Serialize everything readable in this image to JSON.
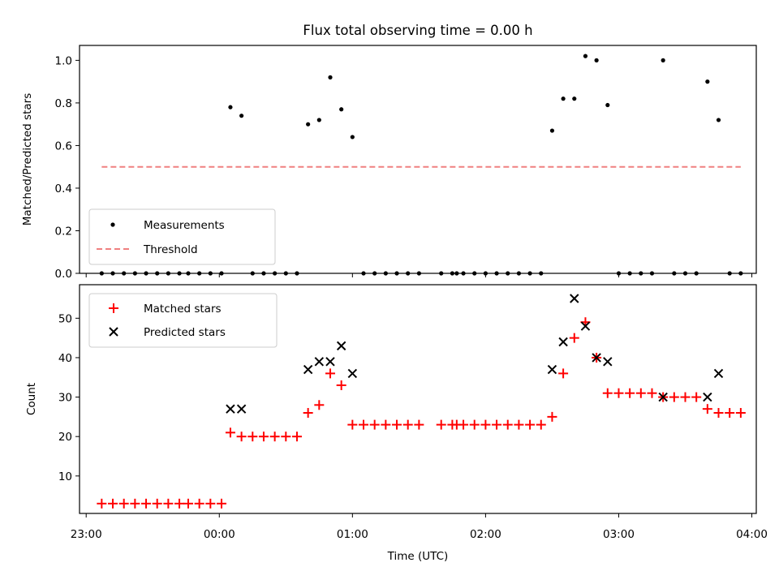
{
  "chart_data": [
    {
      "type": "scatter",
      "title": "Flux total observing time = 0.00 h",
      "xlabel": "",
      "ylabel": "Matched/Predicted stars",
      "ylim": [
        0,
        1.07
      ],
      "yticks": [
        "0.0",
        "0.2",
        "0.4",
        "0.6",
        "0.8",
        "1.0"
      ],
      "legend_position": "lower-left",
      "series": [
        {
          "name": "Measurements",
          "marker": "dot",
          "color": "#000000",
          "points": [
            [
              "23:07",
              0
            ],
            [
              "23:12",
              0
            ],
            [
              "23:17",
              0
            ],
            [
              "23:22",
              0
            ],
            [
              "23:27",
              0
            ],
            [
              "23:32",
              0
            ],
            [
              "23:37",
              0
            ],
            [
              "23:42",
              0
            ],
            [
              "23:46",
              0
            ],
            [
              "23:51",
              0
            ],
            [
              "23:56",
              0
            ],
            [
              "24:01",
              0
            ],
            [
              "24:05",
              0.78
            ],
            [
              "24:10",
              0.74
            ],
            [
              "24:15",
              0
            ],
            [
              "24:20",
              0
            ],
            [
              "24:25",
              0
            ],
            [
              "24:30",
              0
            ],
            [
              "24:35",
              0
            ],
            [
              "24:40",
              0.7
            ],
            [
              "24:45",
              0.72
            ],
            [
              "24:50",
              0.92
            ],
            [
              "24:55",
              0.77
            ],
            [
              "25:00",
              0.64
            ],
            [
              "25:05",
              0
            ],
            [
              "25:10",
              0
            ],
            [
              "25:15",
              0
            ],
            [
              "25:20",
              0
            ],
            [
              "25:25",
              0
            ],
            [
              "25:30",
              0
            ],
            [
              "25:40",
              0
            ],
            [
              "25:45",
              0
            ],
            [
              "25:47",
              0
            ],
            [
              "25:50",
              0
            ],
            [
              "25:55",
              0
            ],
            [
              "26:00",
              0
            ],
            [
              "26:05",
              0
            ],
            [
              "26:10",
              0
            ],
            [
              "26:15",
              0
            ],
            [
              "26:20",
              0
            ],
            [
              "26:25",
              0
            ],
            [
              "26:30",
              0.67
            ],
            [
              "26:35",
              0.82
            ],
            [
              "26:40",
              0.82
            ],
            [
              "26:45",
              1.02
            ],
            [
              "26:50",
              1.0
            ],
            [
              "26:55",
              0.79
            ],
            [
              "27:00",
              0
            ],
            [
              "27:05",
              0
            ],
            [
              "27:10",
              0
            ],
            [
              "27:15",
              0
            ],
            [
              "27:20",
              1.0
            ],
            [
              "27:25",
              0
            ],
            [
              "27:30",
              0
            ],
            [
              "27:35",
              0
            ],
            [
              "27:40",
              0.9
            ],
            [
              "27:45",
              0.72
            ],
            [
              "27:50",
              0
            ],
            [
              "27:55",
              0
            ]
          ]
        },
        {
          "name": "Threshold",
          "marker": "dashed-line",
          "color": "#f08080",
          "x": [
            "23:07",
            "27:55"
          ],
          "value": 0.5
        }
      ]
    },
    {
      "type": "scatter",
      "title": "",
      "xlabel": "Time (UTC)",
      "ylabel": "Count",
      "ylim": [
        0.5,
        58.5
      ],
      "yticks": [
        "10",
        "20",
        "30",
        "40",
        "50"
      ],
      "xlim": [
        "22:57",
        "28:02"
      ],
      "xticks": [
        "23:00",
        "00:00",
        "01:00",
        "02:00",
        "03:00",
        "04:00"
      ],
      "legend_position": "upper-left",
      "series": [
        {
          "name": "Matched stars",
          "marker": "plus",
          "color": "#ff0000",
          "points": [
            [
              "23:07",
              3
            ],
            [
              "23:12",
              3
            ],
            [
              "23:17",
              3
            ],
            [
              "23:22",
              3
            ],
            [
              "23:27",
              3
            ],
            [
              "23:32",
              3
            ],
            [
              "23:37",
              3
            ],
            [
              "23:42",
              3
            ],
            [
              "23:46",
              3
            ],
            [
              "23:51",
              3
            ],
            [
              "23:56",
              3
            ],
            [
              "24:01",
              3
            ],
            [
              "24:05",
              21
            ],
            [
              "24:10",
              20
            ],
            [
              "24:15",
              20
            ],
            [
              "24:20",
              20
            ],
            [
              "24:25",
              20
            ],
            [
              "24:30",
              20
            ],
            [
              "24:35",
              20
            ],
            [
              "24:40",
              26
            ],
            [
              "24:45",
              28
            ],
            [
              "24:50",
              36
            ],
            [
              "24:55",
              33
            ],
            [
              "25:00",
              23
            ],
            [
              "25:05",
              23
            ],
            [
              "25:10",
              23
            ],
            [
              "25:15",
              23
            ],
            [
              "25:20",
              23
            ],
            [
              "25:25",
              23
            ],
            [
              "25:30",
              23
            ],
            [
              "25:40",
              23
            ],
            [
              "25:45",
              23
            ],
            [
              "25:47",
              23
            ],
            [
              "25:50",
              23
            ],
            [
              "25:55",
              23
            ],
            [
              "26:00",
              23
            ],
            [
              "26:05",
              23
            ],
            [
              "26:10",
              23
            ],
            [
              "26:15",
              23
            ],
            [
              "26:20",
              23
            ],
            [
              "26:25",
              23
            ],
            [
              "26:30",
              25
            ],
            [
              "26:35",
              36
            ],
            [
              "26:40",
              45
            ],
            [
              "26:45",
              49
            ],
            [
              "26:50",
              40
            ],
            [
              "26:55",
              31
            ],
            [
              "27:00",
              31
            ],
            [
              "27:05",
              31
            ],
            [
              "27:10",
              31
            ],
            [
              "27:15",
              31
            ],
            [
              "27:20",
              30
            ],
            [
              "27:25",
              30
            ],
            [
              "27:30",
              30
            ],
            [
              "27:35",
              30
            ],
            [
              "27:40",
              27
            ],
            [
              "27:45",
              26
            ],
            [
              "27:50",
              26
            ],
            [
              "27:55",
              26
            ]
          ]
        },
        {
          "name": "Predicted stars",
          "marker": "x",
          "color": "#000000",
          "points": [
            [
              "24:05",
              27
            ],
            [
              "24:10",
              27
            ],
            [
              "24:40",
              37
            ],
            [
              "24:45",
              39
            ],
            [
              "24:50",
              39
            ],
            [
              "24:55",
              43
            ],
            [
              "25:00",
              36
            ],
            [
              "26:30",
              37
            ],
            [
              "26:35",
              44
            ],
            [
              "26:40",
              55
            ],
            [
              "26:45",
              48
            ],
            [
              "26:50",
              40
            ],
            [
              "26:55",
              39
            ],
            [
              "27:20",
              30
            ],
            [
              "27:40",
              30
            ],
            [
              "27:45",
              36
            ]
          ]
        }
      ]
    }
  ]
}
